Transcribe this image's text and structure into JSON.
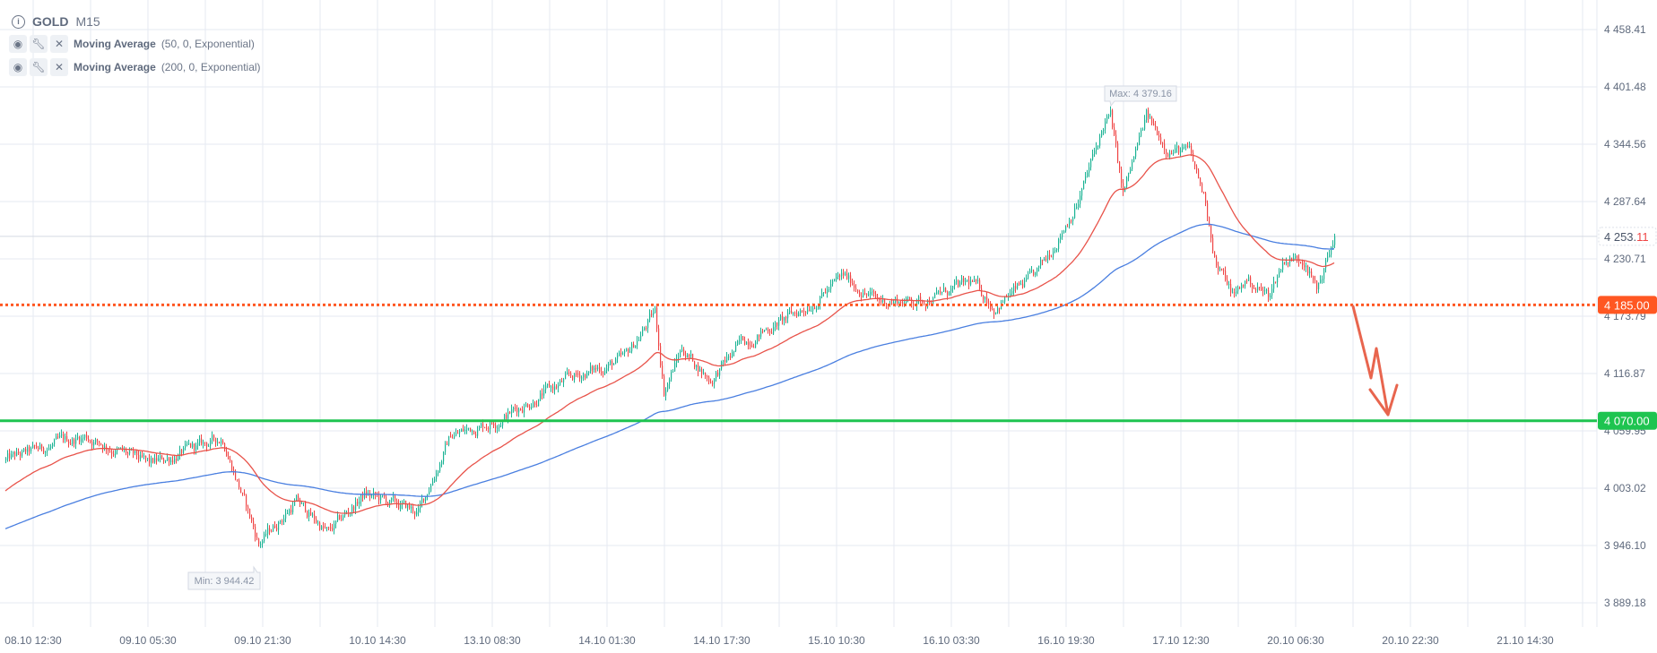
{
  "header": {
    "symbol": "GOLD",
    "timeframe": "M15"
  },
  "indicators": [
    {
      "name": "Moving Average",
      "params": "(50, 0, Exponential)",
      "color": "#e8534a"
    },
    {
      "name": "Moving Average",
      "params": "(200, 0, Exponential)",
      "color": "#4a7fe0"
    }
  ],
  "chart_data": {
    "type": "candlestick",
    "y_ticks": [
      "4 458.41",
      "4 401.48",
      "4 344.56",
      "4 287.64",
      "4 230.71",
      "4 173.79",
      "4 116.87",
      "4 059.95",
      "4 003.02",
      "3 946.10",
      "3 889.18"
    ],
    "ylim": [
      3889.18,
      4458.41
    ],
    "x_ticks": [
      "08.10 12:30",
      "09.10 05:30",
      "09.10 21:30",
      "10.10 14:30",
      "13.10 08:30",
      "14.10 01:30",
      "14.10 17:30",
      "15.10 10:30",
      "16.10 03:30",
      "16.10 19:30",
      "17.10 12:30",
      "20.10 06:30",
      "20.10 22:30",
      "21.10 14:30"
    ],
    "price_path": [
      [
        0,
        4031
      ],
      [
        44,
        4055
      ],
      [
        80,
        4026
      ],
      [
        121,
        4053
      ],
      [
        138,
        3964
      ],
      [
        141,
        3948
      ],
      [
        162,
        3990
      ],
      [
        180,
        3958
      ],
      [
        200,
        3997
      ],
      [
        230,
        3979
      ],
      [
        248,
        4055
      ],
      [
        274,
        4071
      ],
      [
        315,
        4112
      ],
      [
        345,
        4131
      ],
      [
        362,
        4178
      ],
      [
        367,
        4100
      ],
      [
        377,
        4142
      ],
      [
        393,
        4110
      ],
      [
        410,
        4147
      ],
      [
        445,
        4181
      ],
      [
        467,
        4213
      ],
      [
        486,
        4189
      ],
      [
        510,
        4189
      ],
      [
        539,
        4207
      ],
      [
        551,
        4183
      ],
      [
        575,
        4215
      ],
      [
        598,
        4288
      ],
      [
        613,
        4367
      ],
      [
        616,
        4372
      ],
      [
        623,
        4294
      ],
      [
        636,
        4372
      ],
      [
        648,
        4341
      ],
      [
        660,
        4336
      ],
      [
        669,
        4288
      ],
      [
        675,
        4225
      ],
      [
        685,
        4194
      ],
      [
        692,
        4210
      ],
      [
        704,
        4194
      ],
      [
        713,
        4231
      ],
      [
        725,
        4231
      ],
      [
        731,
        4199
      ],
      [
        737,
        4231
      ],
      [
        741,
        4253
      ]
    ],
    "ema_seed": {
      "ema50": 3999,
      "ema200": 3962
    },
    "min_label": "Min: 3 944.42",
    "max_label": "Max: 4 379.16",
    "current_price": {
      "int": "4 253.",
      "dec": "11",
      "value": 4253.11
    },
    "levels": [
      {
        "label": "4 185.00",
        "value": 4185.0,
        "color": "#ff5722",
        "style": "dotted"
      },
      {
        "label": "4 070.00",
        "value": 4070.0,
        "color": "#1ec450",
        "style": "solid"
      }
    ],
    "colors": {
      "bull": "#1bb394",
      "bear": "#ef4444",
      "arrow": "#e8654e"
    }
  }
}
